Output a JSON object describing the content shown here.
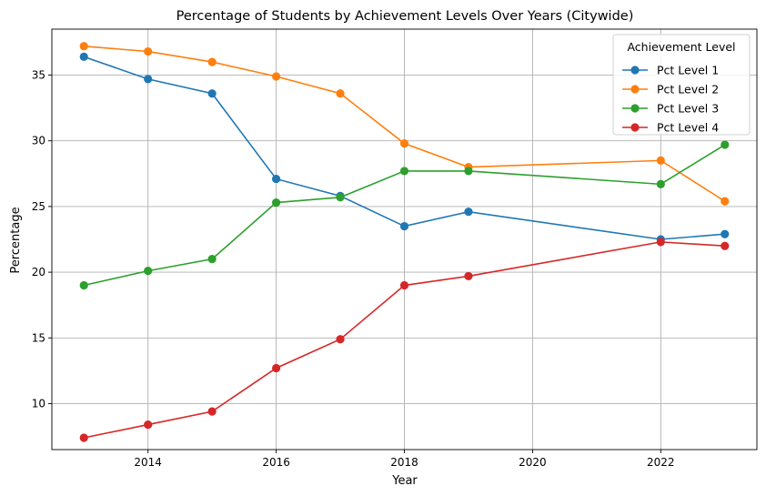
{
  "chart_data": {
    "type": "line",
    "title": "Percentage of Students by Achievement Levels Over Years (Citywide)",
    "xlabel": "Year",
    "ylabel": "Percentage",
    "x": [
      2013,
      2014,
      2015,
      2016,
      2017,
      2018,
      2019,
      2022,
      2023
    ],
    "xlim": [
      2012.5,
      2023.5
    ],
    "ylim": [
      6.5,
      38.5
    ],
    "xticks": [
      2014,
      2016,
      2018,
      2020,
      2022
    ],
    "yticks": [
      10,
      15,
      20,
      25,
      30,
      35
    ],
    "grid": true,
    "legend": {
      "title": "Achievement Level",
      "placement": "top-right"
    },
    "series": [
      {
        "name": "Pct Level 1",
        "color": "#1f77b4",
        "values": [
          36.4,
          34.7,
          33.6,
          27.1,
          25.8,
          23.5,
          24.6,
          22.5,
          22.9
        ]
      },
      {
        "name": "Pct Level 2",
        "color": "#ff7f0e",
        "values": [
          37.2,
          36.8,
          36.0,
          34.9,
          33.6,
          29.8,
          28.0,
          28.5,
          25.4
        ]
      },
      {
        "name": "Pct Level 3",
        "color": "#2ca02c",
        "values": [
          19.0,
          20.1,
          21.0,
          25.3,
          25.7,
          27.7,
          27.7,
          26.7,
          29.7
        ]
      },
      {
        "name": "Pct Level 4",
        "color": "#d62728",
        "values": [
          7.4,
          8.4,
          9.4,
          12.7,
          14.9,
          19.0,
          19.7,
          22.3,
          22.0
        ]
      }
    ]
  }
}
